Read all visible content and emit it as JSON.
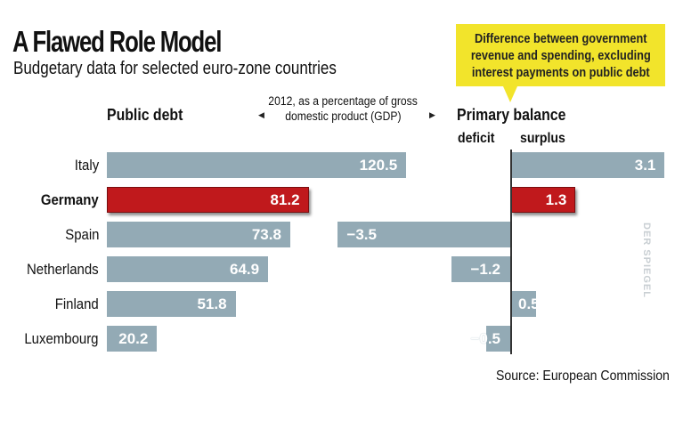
{
  "header": {
    "title": "A Flawed Role Model",
    "subtitle": "Budgetary data for selected euro-zone countries"
  },
  "callout": {
    "lines": [
      "Difference between government",
      "revenue and spending, excluding",
      "interest payments on public debt"
    ],
    "color": "#f2e42b"
  },
  "note": {
    "lines": [
      "2012, as a percentage of gross",
      "domestic product (GDP)"
    ]
  },
  "source": "Source: European Commission",
  "credit": "DER SPIEGEL",
  "colors": {
    "bar": "#93aab5",
    "highlight": "#c0191c"
  },
  "chart_data": {
    "type": "bar",
    "title": "A Flawed Role Model",
    "subtitle": "Budgetary data for selected euro-zone countries",
    "categories": [
      "Italy",
      "Germany",
      "Spain",
      "Netherlands",
      "Finland",
      "Luxembourg"
    ],
    "highlight": "Germany",
    "series": [
      {
        "name": "Public debt",
        "values": [
          120.5,
          81.2,
          73.8,
          64.9,
          51.8,
          20.2
        ],
        "labels": [
          "120.5",
          "81.2",
          "73.8",
          "64.9",
          "51.8",
          "20.2"
        ]
      },
      {
        "name": "Primary balance",
        "values": [
          3.1,
          1.3,
          -3.5,
          -1.2,
          0.5,
          -0.5
        ],
        "labels": [
          "3.1",
          "1.3",
          "−3.5",
          "−1.2",
          "0.5",
          "−0.5"
        ],
        "negative_label": "deficit",
        "positive_label": "surplus"
      }
    ],
    "unit_note": "2012, as a percentage of gross domestic product (GDP)",
    "xlabel": "",
    "ylabel": "",
    "grid": false,
    "orientation": "horizontal"
  }
}
